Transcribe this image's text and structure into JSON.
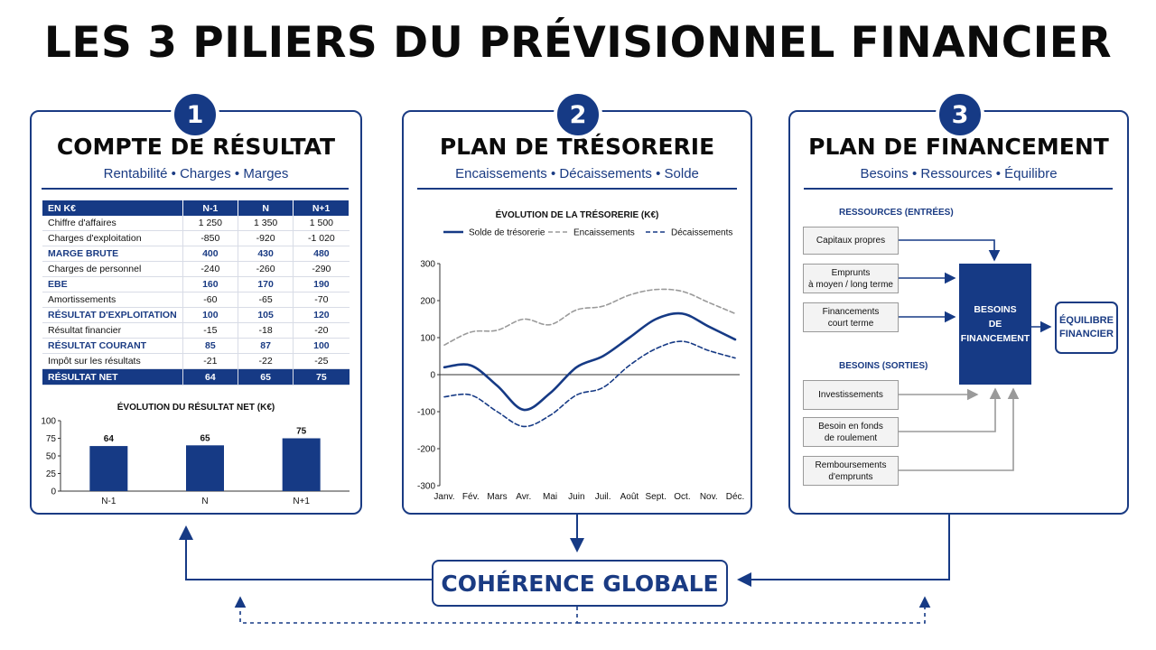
{
  "title": "LES 3 PILIERS DU PRÉVISIONNEL FINANCIER",
  "colors": {
    "navy": "#163a85",
    "gray": "#9a9a9a",
    "gray_line": "#a0a0a0"
  },
  "pillars": [
    {
      "number": "1",
      "title": "COMPTE DE RÉSULTAT",
      "subtitle": "Rentabilité • Charges • Marges"
    },
    {
      "number": "2",
      "title": "PLAN DE TRÉSORERIE",
      "subtitle": "Encaissements • Décaissements • Solde"
    },
    {
      "number": "3",
      "title": "PLAN DE FINANCEMENT",
      "subtitle": "Besoins • Ressources • Équilibre"
    }
  ],
  "income_table": {
    "headers": [
      "EN K€",
      "N-1",
      "N",
      "N+1"
    ],
    "rows": [
      {
        "label": "Chiffre d'affaires",
        "values": [
          "1 250",
          "1 350",
          "1 500"
        ],
        "bold": false
      },
      {
        "label": "Charges d'exploitation",
        "values": [
          "-850",
          "-920",
          "-1 020"
        ],
        "bold": false
      },
      {
        "label": "MARGE BRUTE",
        "values": [
          "400",
          "430",
          "480"
        ],
        "bold": true
      },
      {
        "label": "Charges de personnel",
        "values": [
          "-240",
          "-260",
          "-290"
        ],
        "bold": false
      },
      {
        "label": "EBE",
        "values": [
          "160",
          "170",
          "190"
        ],
        "bold": true
      },
      {
        "label": "Amortissements",
        "values": [
          "-60",
          "-65",
          "-70"
        ],
        "bold": false
      },
      {
        "label": "RÉSULTAT D'EXPLOITATION",
        "values": [
          "100",
          "105",
          "120"
        ],
        "bold": true
      },
      {
        "label": "Résultat financier",
        "values": [
          "-15",
          "-18",
          "-20"
        ],
        "bold": false
      },
      {
        "label": "RÉSULTAT COURANT",
        "values": [
          "85",
          "87",
          "100"
        ],
        "bold": true
      },
      {
        "label": "Impôt sur les résultats",
        "values": [
          "-21",
          "-22",
          "-25"
        ],
        "bold": false
      }
    ],
    "total": {
      "label": "RÉSULTAT NET",
      "values": [
        "64",
        "65",
        "75"
      ]
    }
  },
  "chart_data": [
    {
      "type": "bar",
      "title": "ÉVOLUTION DU RÉSULTAT NET (K€)",
      "categories": [
        "N-1",
        "N",
        "N+1"
      ],
      "values": [
        64,
        65,
        75
      ],
      "ylim": [
        0,
        100
      ],
      "yticks": [
        0,
        25,
        50,
        75,
        100
      ],
      "grid": false
    },
    {
      "type": "line",
      "title": "ÉVOLUTION DE LA TRÉSORERIE (K€)",
      "x": [
        "Janv.",
        "Fév.",
        "Mars",
        "Avr.",
        "Mai",
        "Juin",
        "Juil.",
        "Août",
        "Sept.",
        "Oct.",
        "Nov.",
        "Déc."
      ],
      "ylim": [
        -300,
        300
      ],
      "yticks": [
        -300,
        -200,
        -100,
        0,
        100,
        200,
        300
      ],
      "legend": "top",
      "series": [
        {
          "name": "Solde de trésorerie",
          "style": "solid",
          "values": [
            20,
            25,
            -30,
            -95,
            -50,
            20,
            50,
            100,
            150,
            165,
            130,
            95
          ]
        },
        {
          "name": "Encaissements",
          "style": "dashed-gray",
          "values": [
            80,
            115,
            120,
            150,
            135,
            175,
            185,
            215,
            230,
            225,
            195,
            165
          ]
        },
        {
          "name": "Décaissements",
          "style": "dashed",
          "values": [
            -60,
            -55,
            -100,
            -140,
            -110,
            -55,
            -35,
            25,
            70,
            90,
            65,
            45
          ]
        }
      ]
    }
  ],
  "financing": {
    "resources_label": "RESSOURCES (ENTRÉES)",
    "needs_label": "BESOINS (SORTIES)",
    "resources": [
      "Capitaux propres",
      "Emprunts\nà moyen / long terme",
      "Financements\ncourt terme"
    ],
    "needs": [
      "Investissements",
      "Besoin en fonds\nde roulement",
      "Remboursements\nd'emprunts"
    ],
    "center": "BESOINS\nDE\nFINANCEMENT",
    "result": "ÉQUILIBRE\nFINANCIER"
  },
  "coherence": "COHÉRENCE GLOBALE"
}
